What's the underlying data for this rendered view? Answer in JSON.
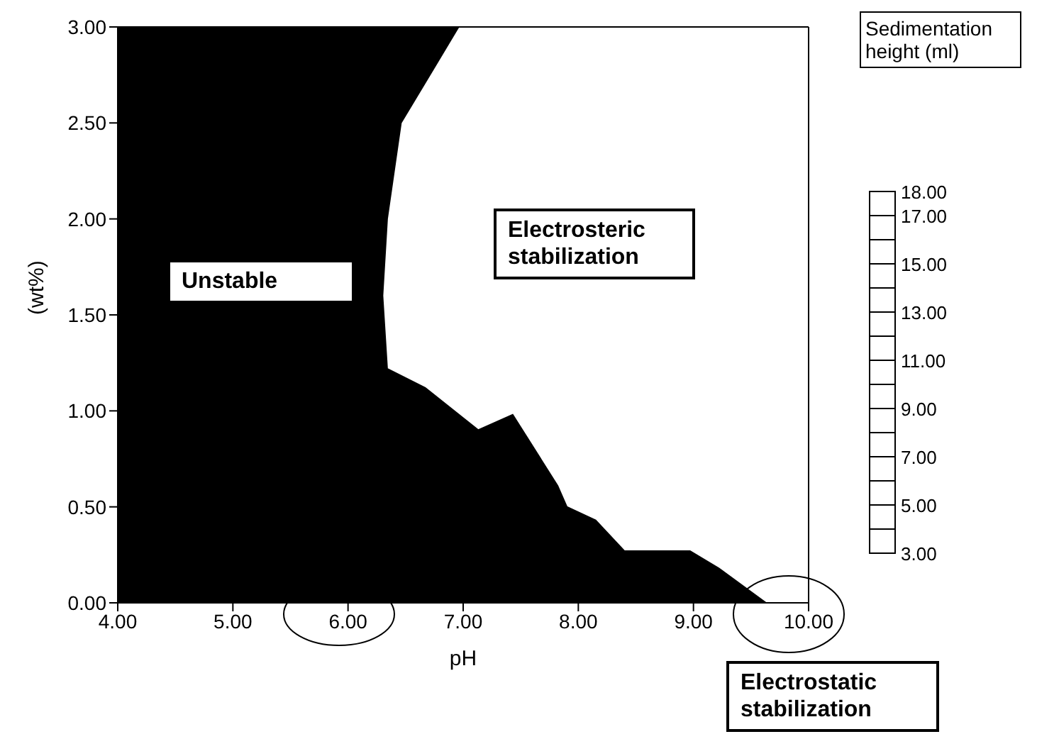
{
  "chart_data": {
    "type": "area",
    "xlabel": "pH",
    "ylabel": "(wt%)",
    "legend_title": "Sedimentation height (ml)",
    "x": [
      4.0,
      6.96,
      6.76,
      6.46,
      6.34,
      6.3,
      6.34,
      6.67,
      7.13,
      7.43,
      7.82,
      7.9,
      8.15,
      8.4,
      8.97,
      9.22,
      9.63
    ],
    "series": [
      {
        "color": "#000000",
        "values": [
          3.0,
          3.0,
          2.8,
          2.5,
          2.0,
          1.6,
          1.22,
          1.12,
          0.9,
          0.98,
          0.61,
          0.5,
          0.43,
          0.27,
          0.27,
          0.18,
          0.0
        ]
      }
    ],
    "xlim": [
      4,
      10
    ],
    "ylim": [
      0,
      3
    ],
    "xticks": [
      {
        "value": 4,
        "label": "4.00"
      },
      {
        "value": 5,
        "label": "5.00"
      },
      {
        "value": 6,
        "label": "6.00"
      },
      {
        "value": 7,
        "label": "7.00"
      },
      {
        "value": 8,
        "label": "8.00"
      },
      {
        "value": 9,
        "label": "9.00"
      },
      {
        "value": 10,
        "label": "10.00"
      }
    ],
    "yticks": [
      {
        "value": 0,
        "label": "0.00"
      },
      {
        "value": 0.5,
        "label": "0.50"
      },
      {
        "value": 1,
        "label": "1.00"
      },
      {
        "value": 1.5,
        "label": "1.50"
      },
      {
        "value": 2,
        "label": "2.00"
      },
      {
        "value": 2.5,
        "label": "2.50"
      },
      {
        "value": 3,
        "label": "3.00"
      }
    ],
    "annotations": [
      "Unstable",
      "Electrosteric stabilization",
      "Electrostatic stabilization",
      "18.00",
      "17.00",
      "15.00",
      "13.00",
      "11.00",
      "9.00",
      "7.00",
      "5.00",
      "3.00"
    ]
  }
}
